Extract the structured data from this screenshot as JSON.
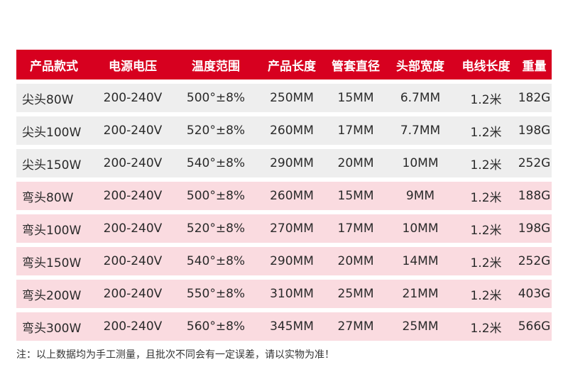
{
  "table": {
    "headers": [
      "产品款式",
      "电源电压",
      "温度范围",
      "产品长度",
      "管套直径",
      "头部宽度",
      "电线长度",
      "重量"
    ],
    "rows": [
      [
        "尖头80W",
        "200-240V",
        "500°±8%",
        "250MM",
        "15MM",
        "6.7MM",
        "1.2米",
        "182G"
      ],
      [
        "尖头100W",
        "200-240V",
        "520°±8%",
        "260MM",
        "17MM",
        "7.7MM",
        "1.2米",
        "198G"
      ],
      [
        "尖头150W",
        "200-240V",
        "540°±8%",
        "290MM",
        "20MM",
        "10MM",
        "1.2米",
        "252G"
      ],
      [
        "弯头80W",
        "200-240V",
        "500°±8%",
        "260MM",
        "15MM",
        "9MM",
        "1.2米",
        "188G"
      ],
      [
        "弯头100W",
        "200-240V",
        "520°±8%",
        "270MM",
        "17MM",
        "10MM",
        "1.2米",
        "198G"
      ],
      [
        "弯头150W",
        "200-240V",
        "540°±8%",
        "290MM",
        "20MM",
        "14MM",
        "1.2米",
        "252G"
      ],
      [
        "弯头200W",
        "200-240V",
        "550°±8%",
        "310MM",
        "25MM",
        "21MM",
        "1.2米",
        "403G"
      ],
      [
        "弯头300W",
        "200-240V",
        "560°±8%",
        "345MM",
        "27MM",
        "25MM",
        "1.2米",
        "566G"
      ]
    ]
  },
  "note": "注：以上数据均为手工测量，且批次不同会有一定误差，请以实物为准！",
  "colors": {
    "header_bg": "#d7001f",
    "straight_tip_row_bg": "#eeeeee",
    "bent_tip_row_bg": "#fadbe0"
  }
}
